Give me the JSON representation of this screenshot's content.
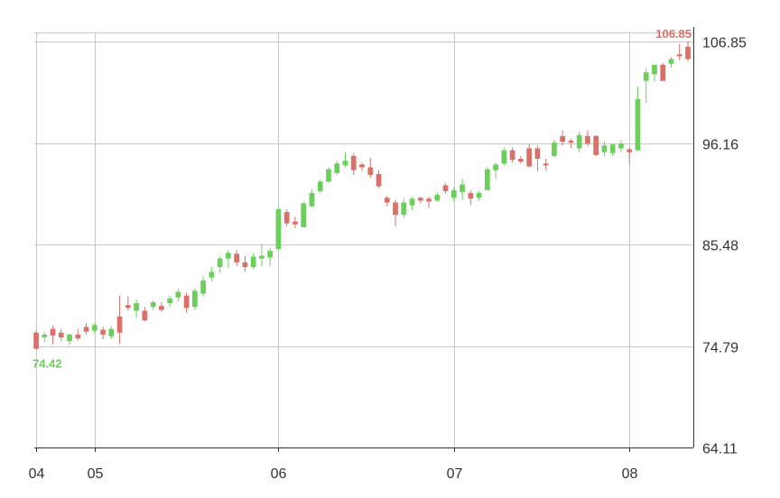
{
  "chart_data": {
    "type": "candlestick",
    "x_tick_labels": [
      "04",
      "05",
      "06",
      "07",
      "08"
    ],
    "y_tick_labels": [
      "106.85",
      "96.16",
      "85.48",
      "74.79",
      "64.11"
    ],
    "ylim": [
      64.11,
      106.85
    ],
    "grid": true,
    "y_axis_side": "right",
    "colors": {
      "up": "#6ccf5d",
      "down": "#d9706a",
      "grid": "#c8c8c8",
      "axis": "#333333"
    },
    "annotations": {
      "max_label": "106.85",
      "min_label": "74.42"
    },
    "candles": [
      {
        "o": 76.2,
        "h": 76.4,
        "l": 74.4,
        "c": 74.5,
        "x_tick": "04"
      },
      {
        "o": 75.7,
        "h": 76.3,
        "l": 75.2,
        "c": 76.0
      },
      {
        "o": 76.6,
        "h": 76.9,
        "l": 75.0,
        "c": 75.9
      },
      {
        "o": 76.2,
        "h": 76.6,
        "l": 75.3,
        "c": 75.7
      },
      {
        "o": 75.3,
        "h": 76.1,
        "l": 74.9,
        "c": 76.0
      },
      {
        "o": 76.0,
        "h": 76.6,
        "l": 75.4,
        "c": 75.6
      },
      {
        "o": 76.8,
        "h": 77.2,
        "l": 76.0,
        "c": 76.3
      },
      {
        "o": 76.4,
        "h": 77.2,
        "l": 76.1,
        "c": 77.0,
        "x_tick": "05"
      },
      {
        "o": 76.5,
        "h": 76.8,
        "l": 75.5,
        "c": 76.0
      },
      {
        "o": 75.8,
        "h": 76.9,
        "l": 75.5,
        "c": 76.6
      },
      {
        "o": 77.9,
        "h": 80.1,
        "l": 75.0,
        "c": 76.2
      },
      {
        "o": 79.1,
        "h": 80.0,
        "l": 78.5,
        "c": 78.8
      },
      {
        "o": 78.5,
        "h": 79.7,
        "l": 77.7,
        "c": 79.3
      },
      {
        "o": 78.5,
        "h": 78.9,
        "l": 77.4,
        "c": 77.5
      },
      {
        "o": 78.9,
        "h": 79.6,
        "l": 78.6,
        "c": 79.4
      },
      {
        "o": 79.0,
        "h": 79.4,
        "l": 78.4,
        "c": 78.6
      },
      {
        "o": 79.3,
        "h": 80.1,
        "l": 78.9,
        "c": 79.8
      },
      {
        "o": 79.9,
        "h": 80.8,
        "l": 79.5,
        "c": 80.5
      },
      {
        "o": 80.1,
        "h": 80.4,
        "l": 78.3,
        "c": 78.8
      },
      {
        "o": 78.9,
        "h": 80.9,
        "l": 78.6,
        "c": 80.6
      },
      {
        "o": 80.3,
        "h": 82.1,
        "l": 80.0,
        "c": 81.7
      },
      {
        "o": 82.0,
        "h": 83.1,
        "l": 81.6,
        "c": 82.6
      },
      {
        "o": 83.1,
        "h": 84.2,
        "l": 82.5,
        "c": 84.0
      },
      {
        "o": 84.0,
        "h": 84.9,
        "l": 83.0,
        "c": 84.6
      },
      {
        "o": 84.5,
        "h": 84.9,
        "l": 83.2,
        "c": 83.6
      },
      {
        "o": 83.6,
        "h": 84.3,
        "l": 82.6,
        "c": 83.1
      },
      {
        "o": 83.1,
        "h": 84.6,
        "l": 82.9,
        "c": 84.2
      },
      {
        "o": 84.0,
        "h": 85.6,
        "l": 83.2,
        "c": 84.3
      },
      {
        "o": 84.1,
        "h": 85.1,
        "l": 83.2,
        "c": 84.8
      },
      {
        "o": 85.0,
        "h": 89.4,
        "l": 84.9,
        "c": 89.2,
        "x_tick": "06"
      },
      {
        "o": 88.9,
        "h": 89.2,
        "l": 87.4,
        "c": 87.7
      },
      {
        "o": 87.9,
        "h": 88.4,
        "l": 87.2,
        "c": 87.6
      },
      {
        "o": 87.3,
        "h": 90.0,
        "l": 87.3,
        "c": 89.8
      },
      {
        "o": 89.5,
        "h": 91.3,
        "l": 89.4,
        "c": 90.9
      },
      {
        "o": 91.1,
        "h": 92.3,
        "l": 90.9,
        "c": 92.1
      },
      {
        "o": 92.1,
        "h": 93.6,
        "l": 92.0,
        "c": 93.4
      },
      {
        "o": 93.0,
        "h": 94.3,
        "l": 92.8,
        "c": 94.0
      },
      {
        "o": 93.8,
        "h": 95.2,
        "l": 93.6,
        "c": 94.3
      },
      {
        "o": 94.8,
        "h": 95.1,
        "l": 92.8,
        "c": 93.3
      },
      {
        "o": 93.9,
        "h": 94.1,
        "l": 93.2,
        "c": 93.6
      },
      {
        "o": 93.6,
        "h": 94.6,
        "l": 92.5,
        "c": 92.8
      },
      {
        "o": 92.9,
        "h": 93.3,
        "l": 91.4,
        "c": 91.6
      },
      {
        "o": 90.4,
        "h": 90.6,
        "l": 89.5,
        "c": 89.9
      },
      {
        "o": 89.9,
        "h": 90.2,
        "l": 87.4,
        "c": 88.6
      },
      {
        "o": 88.6,
        "h": 90.3,
        "l": 88.3,
        "c": 89.9
      },
      {
        "o": 89.6,
        "h": 90.5,
        "l": 89.1,
        "c": 90.3
      },
      {
        "o": 90.4,
        "h": 90.5,
        "l": 89.8,
        "c": 90.1
      },
      {
        "o": 90.3,
        "h": 90.5,
        "l": 89.3,
        "c": 90.0
      },
      {
        "o": 90.1,
        "h": 91.0,
        "l": 90.0,
        "c": 90.7
      },
      {
        "o": 91.7,
        "h": 91.9,
        "l": 90.8,
        "c": 91.1
      },
      {
        "o": 90.4,
        "h": 91.5,
        "l": 90.0,
        "c": 91.2,
        "x_tick": "07"
      },
      {
        "o": 91.0,
        "h": 92.4,
        "l": 90.2,
        "c": 91.8
      },
      {
        "o": 90.9,
        "h": 91.2,
        "l": 89.6,
        "c": 90.3
      },
      {
        "o": 90.4,
        "h": 91.1,
        "l": 90.1,
        "c": 90.9
      },
      {
        "o": 91.2,
        "h": 93.6,
        "l": 91.2,
        "c": 93.4
      },
      {
        "o": 93.3,
        "h": 94.1,
        "l": 92.4,
        "c": 93.9
      },
      {
        "o": 94.0,
        "h": 95.7,
        "l": 93.8,
        "c": 95.4
      },
      {
        "o": 95.4,
        "h": 95.7,
        "l": 94.1,
        "c": 94.4
      },
      {
        "o": 94.5,
        "h": 94.8,
        "l": 94.0,
        "c": 94.2
      },
      {
        "o": 95.6,
        "h": 96.1,
        "l": 93.6,
        "c": 93.7
      },
      {
        "o": 95.6,
        "h": 95.9,
        "l": 93.2,
        "c": 94.5
      },
      {
        "o": 94.0,
        "h": 94.5,
        "l": 93.3,
        "c": 93.8
      },
      {
        "o": 94.8,
        "h": 96.5,
        "l": 94.7,
        "c": 96.2
      },
      {
        "o": 96.9,
        "h": 97.5,
        "l": 95.9,
        "c": 96.3
      },
      {
        "o": 96.4,
        "h": 96.6,
        "l": 95.6,
        "c": 96.2
      },
      {
        "o": 95.6,
        "h": 97.4,
        "l": 95.2,
        "c": 97.0
      },
      {
        "o": 96.9,
        "h": 97.5,
        "l": 95.8,
        "c": 96.1
      },
      {
        "o": 96.9,
        "h": 97.0,
        "l": 94.8,
        "c": 94.9
      },
      {
        "o": 95.2,
        "h": 96.3,
        "l": 94.8,
        "c": 95.9
      },
      {
        "o": 95.1,
        "h": 96.1,
        "l": 94.8,
        "c": 96.0
      },
      {
        "o": 95.6,
        "h": 96.5,
        "l": 95.2,
        "c": 96.1
      },
      {
        "o": 95.5,
        "h": 95.7,
        "l": 94.0,
        "c": 95.2,
        "x_tick": "08"
      },
      {
        "o": 95.4,
        "h": 102.1,
        "l": 95.3,
        "c": 100.8
      },
      {
        "o": 102.7,
        "h": 104.0,
        "l": 100.4,
        "c": 103.6
      },
      {
        "o": 103.4,
        "h": 104.4,
        "l": 102.6,
        "c": 104.4
      },
      {
        "o": 104.4,
        "h": 104.6,
        "l": 102.7,
        "c": 102.7
      },
      {
        "o": 104.5,
        "h": 105.2,
        "l": 104.1,
        "c": 105.0
      },
      {
        "o": 105.5,
        "h": 106.6,
        "l": 104.9,
        "c": 105.3
      },
      {
        "o": 106.3,
        "h": 106.9,
        "l": 104.8,
        "c": 105.0
      }
    ]
  }
}
